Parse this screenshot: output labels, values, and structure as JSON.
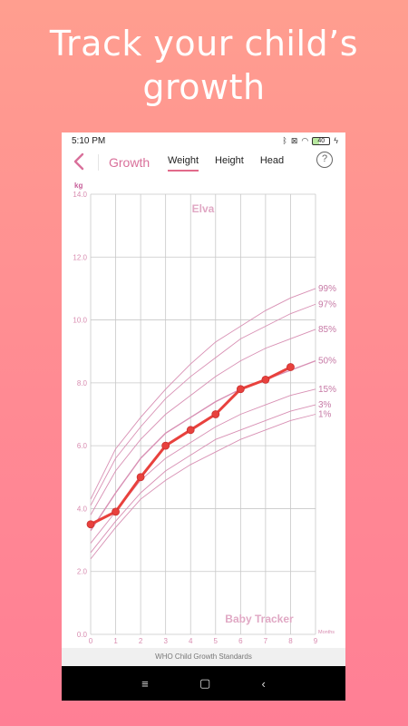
{
  "headline": {
    "line1": "Track your child’s",
    "line2": "growth"
  },
  "status_bar": {
    "time": "5:10 PM",
    "battery": "40",
    "icons": [
      "bluetooth-icon",
      "nosim-icon",
      "wifi-icon",
      "battery-icon",
      "charging-icon"
    ]
  },
  "app_bar": {
    "title": "Growth",
    "tabs": [
      {
        "label": "Weight",
        "active": true
      },
      {
        "label": "Height",
        "active": false
      },
      {
        "label": "Head",
        "active": false
      }
    ],
    "help_glyph": "?"
  },
  "chart_data": {
    "type": "line",
    "unit_y": "kg",
    "unit_x": "Months",
    "child_name": "Elva",
    "watermark": "Baby Tracker",
    "xlim": [
      0,
      9
    ],
    "ylim": [
      0,
      14
    ],
    "x_ticks": [
      "0",
      "1",
      "2",
      "3",
      "4",
      "5",
      "6",
      "7",
      "8",
      "9"
    ],
    "y_ticks": [
      "0.0",
      "2.0",
      "4.0",
      "6.0",
      "8.0",
      "10.0",
      "12.0",
      "14.0"
    ],
    "grid": true,
    "percentiles": [
      {
        "name": "99%",
        "values": [
          4.3,
          5.9,
          6.9,
          7.8,
          8.6,
          9.3,
          9.8,
          10.3,
          10.7,
          11.0
        ]
      },
      {
        "name": "97%",
        "values": [
          4.1,
          5.6,
          6.6,
          7.5,
          8.2,
          8.8,
          9.4,
          9.8,
          10.2,
          10.5
        ]
      },
      {
        "name": "85%",
        "values": [
          3.8,
          5.2,
          6.2,
          7.0,
          7.6,
          8.2,
          8.7,
          9.1,
          9.4,
          9.7
        ]
      },
      {
        "name": "50%",
        "values": [
          3.3,
          4.5,
          5.6,
          6.4,
          6.9,
          7.4,
          7.8,
          8.1,
          8.4,
          8.7
        ]
      },
      {
        "name": "15%",
        "values": [
          2.9,
          3.9,
          4.9,
          5.6,
          6.1,
          6.6,
          7.0,
          7.3,
          7.6,
          7.8
        ]
      },
      {
        "name": "3%",
        "values": [
          2.6,
          3.6,
          4.5,
          5.2,
          5.7,
          6.2,
          6.5,
          6.8,
          7.1,
          7.3
        ]
      },
      {
        "name": "1%",
        "values": [
          2.4,
          3.4,
          4.3,
          4.9,
          5.4,
          5.8,
          6.2,
          6.5,
          6.8,
          7.0
        ]
      }
    ],
    "series": [
      {
        "name": "Elva",
        "x": [
          0,
          1,
          2,
          3,
          4,
          5,
          6,
          7,
          8
        ],
        "values": [
          3.5,
          3.9,
          5.0,
          6.0,
          6.5,
          7.0,
          7.8,
          8.1,
          8.5
        ]
      }
    ],
    "colors": {
      "series": "#e8413d",
      "percentile": "#d890b4",
      "grid": "#c8c8c8",
      "axis_text": "#d88cb0",
      "name_text": "#e0a8c4"
    }
  },
  "footer": {
    "label": "WHO Child Growth Standards"
  },
  "nav_bar": {
    "menu_glyph": "≡",
    "home_glyph": "▢",
    "back_glyph": "‹"
  }
}
